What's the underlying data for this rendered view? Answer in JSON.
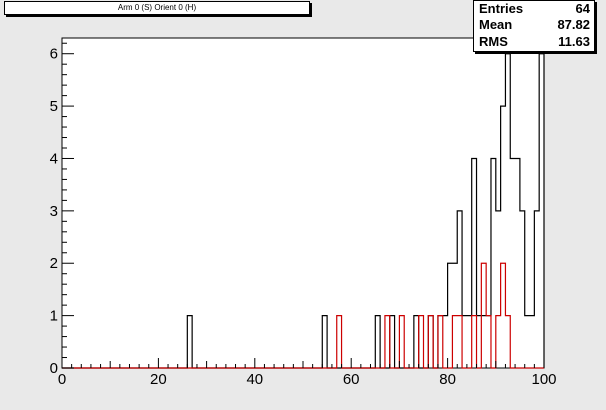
{
  "title": "Arm 0 (S) Orient 0 (H)",
  "stats": [
    {
      "label": "Entries",
      "value": "64"
    },
    {
      "label": "Mean",
      "value": "87.82"
    },
    {
      "label": "RMS",
      "value": "11.63"
    }
  ],
  "colors": {
    "background": "#e9e9e9",
    "frame": "#ffffff",
    "series_black": "#000000",
    "series_red": "#cc0000"
  },
  "chart_data": {
    "type": "histogram",
    "title": "Arm 0 (S) Orient 0 (H)",
    "xlabel": "",
    "ylabel": "",
    "xlim": [
      0,
      100
    ],
    "ylim": [
      0,
      6.3
    ],
    "bin_width": 1,
    "grid": false,
    "x_ticks": [
      0,
      20,
      40,
      60,
      80,
      100
    ],
    "y_ticks": [
      0,
      1,
      2,
      3,
      4,
      5,
      6
    ],
    "series": [
      {
        "color": "black",
        "bins": {
          "26": 1,
          "54": 1,
          "65": 1,
          "68": 1,
          "73": 1,
          "76": 1,
          "78": 1,
          "79": 1,
          "80": 2,
          "81": 2,
          "82": 3,
          "83": 1,
          "84": 1,
          "85": 4,
          "86": 1,
          "87": 1,
          "88": 1,
          "89": 4,
          "90": 3,
          "91": 5,
          "92": 6,
          "93": 4,
          "94": 4,
          "95": 3,
          "96": 1,
          "97": 1,
          "98": 3,
          "99": 6
        }
      },
      {
        "color": "red",
        "bins": {
          "57": 1,
          "67": 1,
          "70": 1,
          "74": 1,
          "76": 1,
          "78": 1,
          "81": 1,
          "82": 1,
          "85": 1,
          "87": 2,
          "88": 1,
          "90": 1,
          "91": 2,
          "92": 1
        }
      }
    ]
  }
}
